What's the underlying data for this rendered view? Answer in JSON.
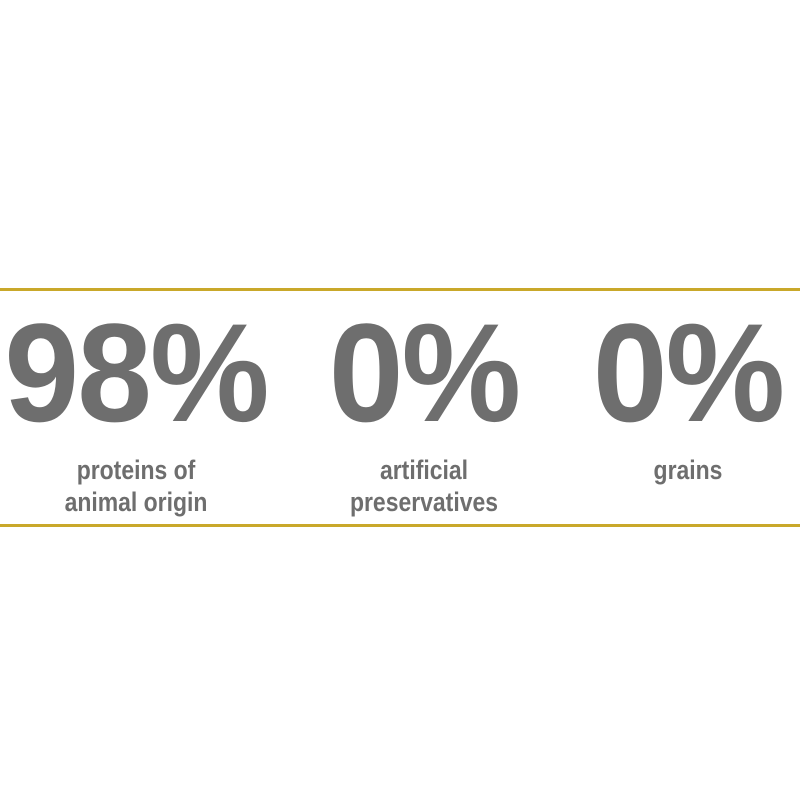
{
  "accent_color": "#c9a82a",
  "text_color": "#6e6e6e",
  "stats": [
    {
      "value": "98%",
      "caption_lines": [
        "proteins of",
        "animal origin"
      ]
    },
    {
      "value": "0%",
      "caption_lines": [
        "artificial",
        "preservatives"
      ]
    },
    {
      "value": "0%",
      "caption_lines": [
        "grains"
      ]
    }
  ]
}
